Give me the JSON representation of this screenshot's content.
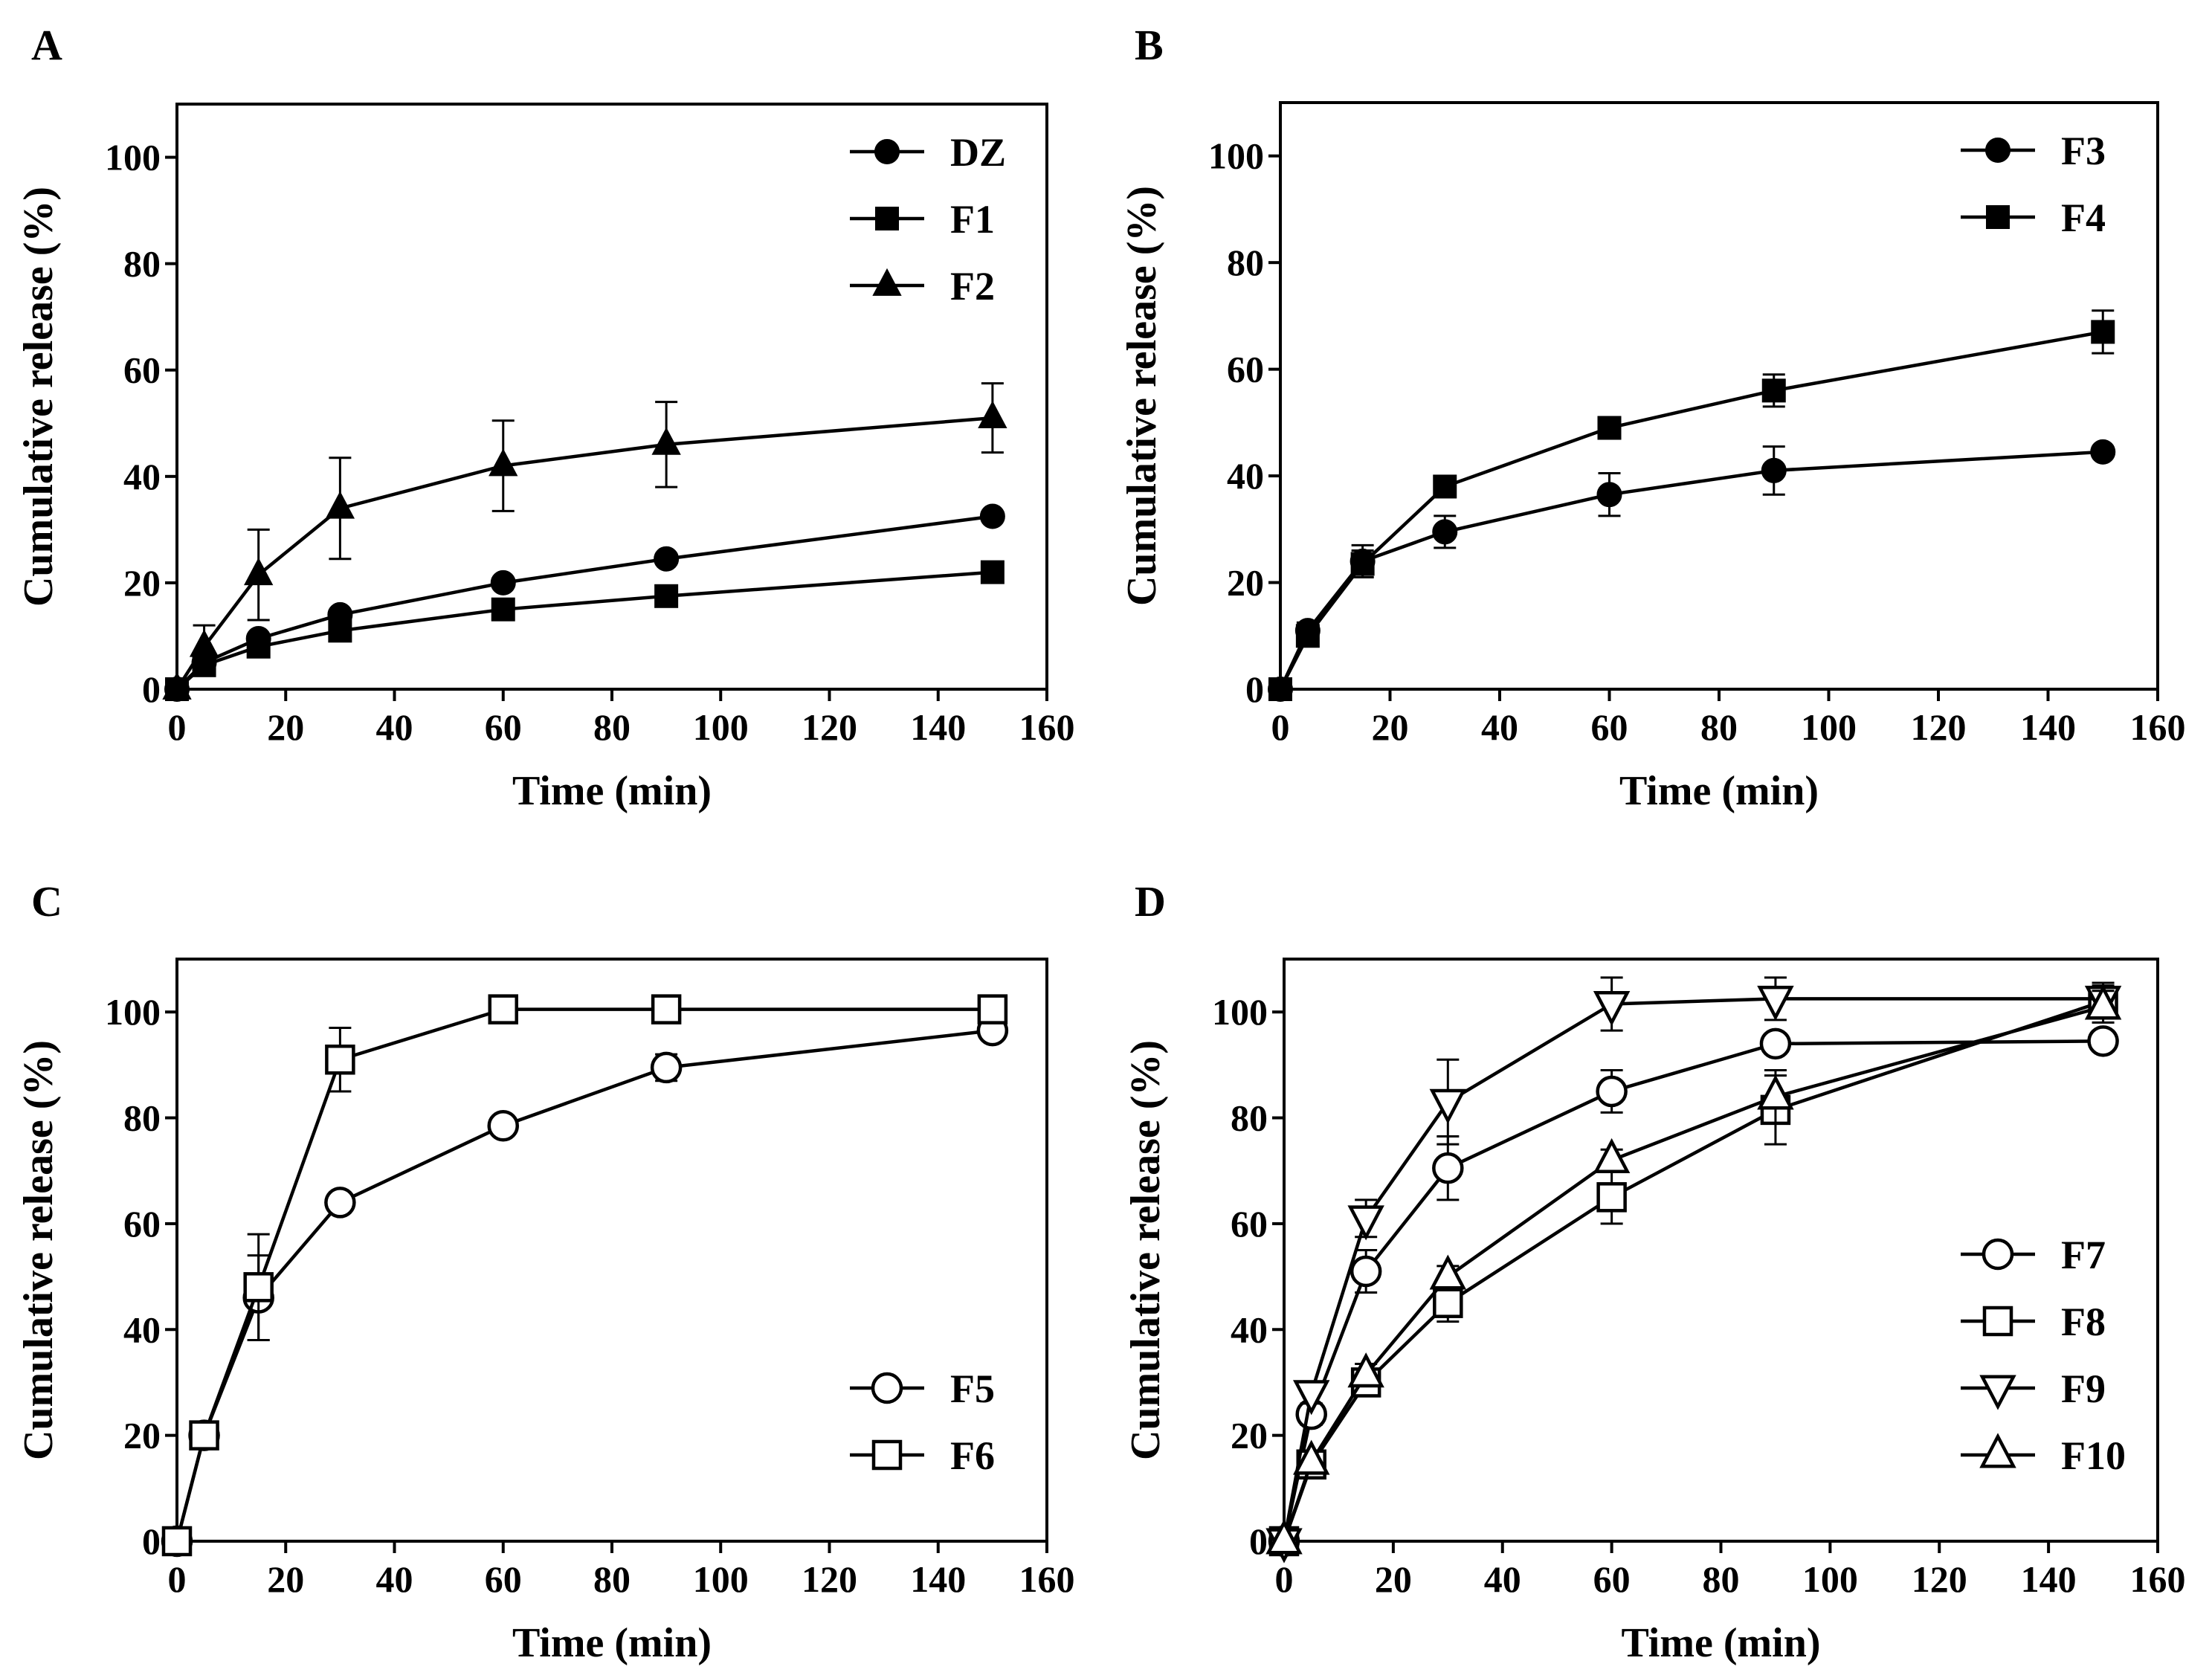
{
  "chart_data": [
    {
      "panel": "A",
      "type": "line",
      "xlabel": "Time (min)",
      "ylabel": "Cumulative release (%)",
      "xlim": [
        0,
        160
      ],
      "ylim": [
        0,
        110
      ],
      "xticks": [
        0,
        20,
        40,
        60,
        80,
        100,
        120,
        140,
        160
      ],
      "yticks": [
        0,
        20,
        40,
        60,
        80,
        100
      ],
      "legend_position": "top-right",
      "series": [
        {
          "name": "DZ",
          "marker": "circle",
          "filled": true,
          "x": [
            0,
            5,
            15,
            30,
            60,
            90,
            150
          ],
          "y": [
            0,
            5,
            9.5,
            14,
            20,
            24.5,
            32.5
          ],
          "err": [
            0,
            1,
            1,
            1,
            1,
            1,
            1
          ]
        },
        {
          "name": "F1",
          "marker": "square",
          "filled": true,
          "x": [
            0,
            5,
            15,
            30,
            60,
            90,
            150
          ],
          "y": [
            0,
            4.5,
            8,
            11,
            15,
            17.5,
            22
          ],
          "err": [
            0,
            1,
            1,
            1,
            1,
            1,
            1
          ]
        },
        {
          "name": "F2",
          "marker": "triangle-up",
          "filled": true,
          "x": [
            0,
            5,
            15,
            30,
            60,
            90,
            150
          ],
          "y": [
            0,
            8,
            21.5,
            34,
            42,
            46,
            51
          ],
          "err": [
            0,
            4,
            8.5,
            9.5,
            8.5,
            8,
            6.5
          ]
        }
      ]
    },
    {
      "panel": "B",
      "type": "line",
      "xlabel": "Time (min)",
      "ylabel": "Cumulative release (%)",
      "xlim": [
        0,
        160
      ],
      "ylim": [
        0,
        110
      ],
      "xticks": [
        0,
        20,
        40,
        60,
        80,
        100,
        120,
        140,
        160
      ],
      "yticks": [
        0,
        20,
        40,
        60,
        80,
        100
      ],
      "legend_position": "top-right",
      "series": [
        {
          "name": "F3",
          "marker": "circle",
          "filled": true,
          "x": [
            0,
            5,
            15,
            30,
            60,
            90,
            150
          ],
          "y": [
            0,
            11,
            24,
            29.5,
            36.5,
            41,
            44.5
          ],
          "err": [
            0,
            1.5,
            3,
            3,
            4,
            4.5,
            1
          ]
        },
        {
          "name": "F4",
          "marker": "square",
          "filled": true,
          "x": [
            0,
            5,
            15,
            30,
            60,
            90,
            150
          ],
          "y": [
            0,
            10,
            23.5,
            38,
            49,
            56,
            67
          ],
          "err": [
            0,
            1.5,
            2.5,
            2,
            2,
            3,
            4
          ]
        }
      ]
    },
    {
      "panel": "C",
      "type": "line",
      "xlabel": "Time (min)",
      "ylabel": "Cumulative release (%)",
      "xlim": [
        0,
        160
      ],
      "ylim": [
        0,
        110
      ],
      "xticks": [
        0,
        20,
        40,
        60,
        80,
        100,
        120,
        140,
        160
      ],
      "yticks": [
        0,
        20,
        40,
        60,
        80,
        100
      ],
      "legend_position": "bottom-right",
      "series": [
        {
          "name": "F5",
          "marker": "circle",
          "filled": false,
          "x": [
            0,
            5,
            15,
            30,
            60,
            90,
            150
          ],
          "y": [
            0,
            20,
            46,
            64,
            78.5,
            89.5,
            96.5
          ],
          "err": [
            0,
            1,
            8,
            1,
            1,
            2.5,
            1
          ]
        },
        {
          "name": "F6",
          "marker": "square",
          "filled": false,
          "x": [
            0,
            5,
            15,
            30,
            60,
            90,
            150
          ],
          "y": [
            0,
            20,
            48,
            91,
            100.5,
            100.5,
            100.5
          ],
          "err": [
            0,
            1,
            10,
            6,
            1,
            1,
            1
          ]
        }
      ]
    },
    {
      "panel": "D",
      "type": "line",
      "xlabel": "Time (min)",
      "ylabel": "Cumulative release (%)",
      "xlim": [
        0,
        160
      ],
      "ylim": [
        0,
        110
      ],
      "xticks": [
        0,
        20,
        40,
        60,
        80,
        100,
        120,
        140,
        160
      ],
      "yticks": [
        0,
        20,
        40,
        60,
        80,
        100
      ],
      "legend_position": "bottom-right",
      "series": [
        {
          "name": "F7",
          "marker": "circle",
          "filled": false,
          "x": [
            0,
            5,
            15,
            30,
            60,
            90,
            150
          ],
          "y": [
            0,
            24,
            51,
            70.5,
            85,
            94,
            94.5
          ],
          "err": [
            0,
            2,
            4,
            6,
            4,
            1,
            1
          ]
        },
        {
          "name": "F8",
          "marker": "square",
          "filled": false,
          "x": [
            0,
            5,
            15,
            30,
            60,
            90,
            150
          ],
          "y": [
            0,
            14.5,
            30,
            45,
            65,
            81.5,
            102
          ],
          "err": [
            0,
            2,
            2,
            3.5,
            5,
            6.5,
            3
          ]
        },
        {
          "name": "F9",
          "marker": "triangle-down",
          "filled": false,
          "x": [
            0,
            5,
            15,
            30,
            60,
            90,
            150
          ],
          "y": [
            0,
            28,
            61,
            83,
            101.5,
            102.5,
            102.5
          ],
          "err": [
            0,
            2,
            3.5,
            8,
            5,
            4,
            3
          ]
        },
        {
          "name": "F10",
          "marker": "triangle-up",
          "filled": false,
          "x": [
            0,
            5,
            15,
            30,
            60,
            90,
            150
          ],
          "y": [
            0,
            15,
            31.5,
            50,
            72,
            84,
            101
          ],
          "err": [
            0,
            2,
            2,
            2,
            2,
            5,
            3
          ]
        }
      ]
    }
  ]
}
